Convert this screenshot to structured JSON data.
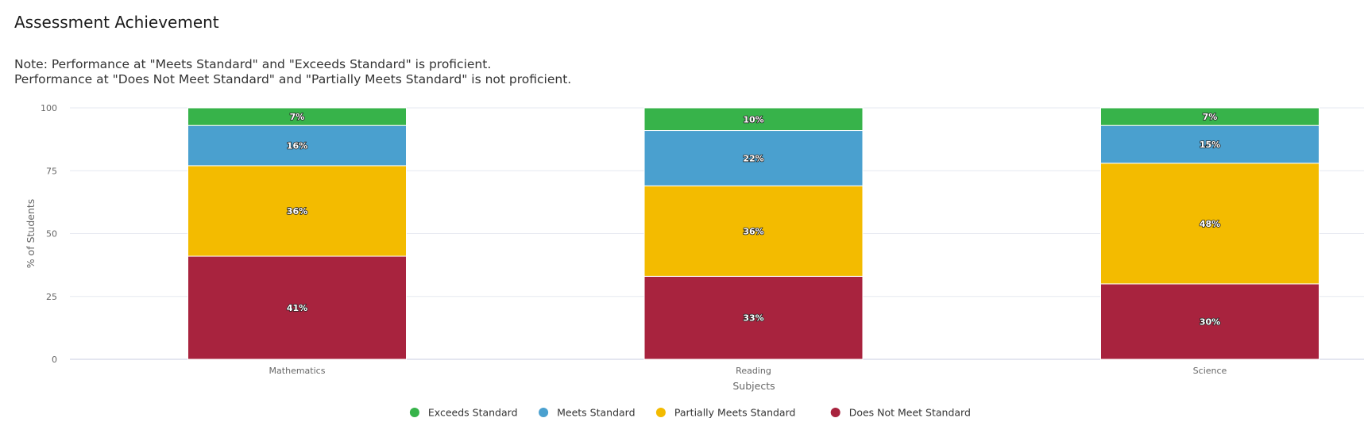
{
  "page": {
    "title": "Assessment Achievement",
    "note_lines": [
      "Note: Performance at \"Meets Standard\" and \"Exceeds Standard\" is proficient.",
      "Performance at \"Does Not Meet Standard\" and \"Partially Meets Standard\" is not proficient."
    ]
  },
  "chart_data": {
    "type": "bar",
    "stacked": true,
    "title": "",
    "xlabel": "Subjects",
    "ylabel": "% of Students",
    "ylim": [
      0,
      100
    ],
    "yticks": [
      0,
      25,
      50,
      75,
      100
    ],
    "categories": [
      "Mathematics",
      "Reading",
      "Science"
    ],
    "series": [
      {
        "name": "Does Not Meet Standard",
        "color": "#a8233e",
        "values": [
          41,
          33,
          30
        ],
        "labels": [
          "41%",
          "33%",
          "30%"
        ]
      },
      {
        "name": "Partially Meets Standard",
        "color": "#f3bb00",
        "values": [
          36,
          36,
          48
        ],
        "labels": [
          "36%",
          "36%",
          "48%"
        ]
      },
      {
        "name": "Meets Standard",
        "color": "#4aa0cf",
        "values": [
          16,
          22,
          15
        ],
        "labels": [
          "16%",
          "22%",
          "15%"
        ]
      },
      {
        "name": "Exceeds Standard",
        "color": "#37b34a",
        "values": [
          7,
          10,
          7
        ],
        "labels": [
          "7%",
          "10%",
          "7%"
        ]
      }
    ],
    "legend_order": [
      "Exceeds Standard",
      "Meets Standard",
      "Partially Meets Standard",
      "Does Not Meet Standard"
    ],
    "legend_position": "bottom-center",
    "grid": true,
    "gridline_color": "#e6e9f0"
  }
}
